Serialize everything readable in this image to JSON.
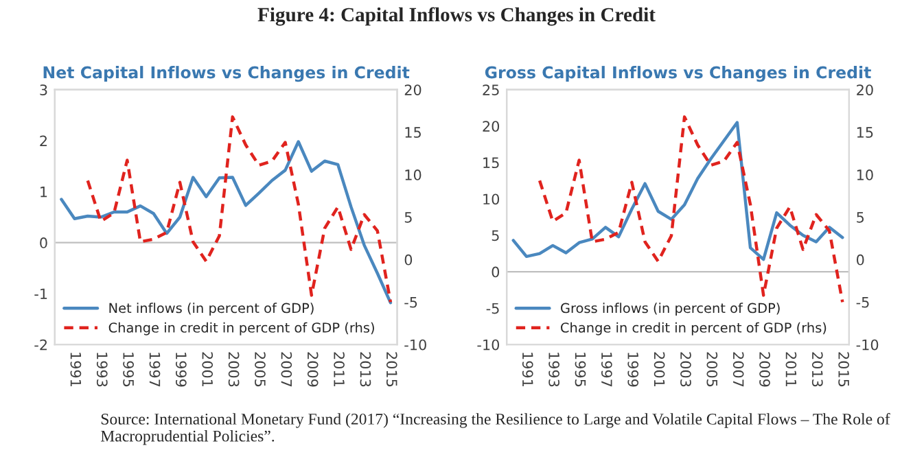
{
  "chart_data": [
    {
      "type": "line",
      "title": "Net Capital Inflows vs Changes in Credit",
      "annotations": [
        "Figure 4: Capital Inflows vs Changes in Credit",
        "Source: International Monetary Fund (2017) “Increasing the Resilience to Large and Volatile Capital Flows – The Role of Macroprudential Policies”."
      ],
      "categories": [
        null,
        "1991",
        null,
        "1993",
        null,
        "1995",
        null,
        "1997",
        null,
        "1999",
        null,
        "2001",
        null,
        "2003",
        null,
        "2005",
        null,
        "2007",
        null,
        "2009",
        null,
        "2011",
        null,
        "2013",
        null,
        "2015"
      ],
      "series": [
        {
          "name": "Net inflows (in percent of GDP)",
          "color": "#4a88bf",
          "line_style": "solid",
          "values": [
            0.85,
            0.47,
            0.52,
            0.5,
            0.6,
            0.6,
            0.72,
            0.57,
            0.18,
            0.5,
            1.28,
            0.9,
            1.27,
            1.28,
            0.73,
            0.97,
            1.22,
            1.42,
            1.98,
            1.4,
            1.6,
            1.53,
            0.7,
            -0.05,
            -0.6,
            -1.18
          ]
        },
        {
          "name": "Change in credit in percent of GDP (rhs)",
          "color": "#e0231e",
          "line_style": "dashed",
          "axis": "y2",
          "values": [
            null,
            null,
            9.3,
            4.5,
            5.5,
            11.7,
            2.1,
            2.4,
            3.2,
            9.1,
            2.1,
            -0.2,
            2.8,
            16.8,
            13.5,
            11.1,
            11.6,
            13.8,
            6.5,
            -4.2,
            3.7,
            6.2,
            1.2,
            5.3,
            3.4,
            -5
          ]
        }
      ],
      "ylim": [
        -2,
        3
      ],
      "yticks": [
        -2,
        -1,
        0,
        1,
        2,
        3
      ],
      "y2lim": [
        -10,
        20
      ],
      "y2ticks": [
        -10,
        -5,
        0,
        5,
        10,
        15,
        20
      ],
      "ref_lines": [
        {
          "axis": "y",
          "value": 0,
          "color": "#bfbfbf"
        }
      ],
      "legend": "bottom left",
      "grid": false
    },
    {
      "type": "line",
      "title": "Gross Capital Inflows vs Changes in Credit",
      "categories": [
        null,
        "1991",
        null,
        "1993",
        null,
        "1995",
        null,
        "1997",
        null,
        "1999",
        null,
        "2001",
        null,
        "2003",
        null,
        "2005",
        null,
        "2007",
        null,
        "2009",
        null,
        "2011",
        null,
        "2013",
        null,
        "2015"
      ],
      "series": [
        {
          "name": "Gross inflows (in percent of GDP)",
          "color": "#4a88bf",
          "line_style": "solid",
          "values": [
            4.3,
            2.1,
            2.5,
            3.6,
            2.6,
            4.0,
            4.5,
            6.1,
            4.8,
            8.6,
            12.1,
            8.3,
            7.2,
            9.2,
            12.8,
            15.5,
            18.0,
            20.5,
            3.3,
            1.7,
            8.1,
            6.4,
            5.0,
            4.1,
            6.1,
            4.7
          ]
        },
        {
          "name": "Change in credit in percent of GDP (rhs)",
          "color": "#e0231e",
          "line_style": "dashed",
          "axis": "y2",
          "values": [
            null,
            null,
            9.3,
            4.5,
            5.5,
            11.7,
            2.1,
            2.4,
            3.2,
            9.1,
            2.1,
            -0.2,
            2.8,
            16.8,
            13.5,
            11.1,
            11.6,
            13.8,
            6.5,
            -4.2,
            3.7,
            6.2,
            1.2,
            5.3,
            3.4,
            -5
          ]
        }
      ],
      "ylim": [
        -10,
        25
      ],
      "yticks": [
        -10,
        -5,
        0,
        5,
        10,
        15,
        20,
        25
      ],
      "y2lim": [
        -10,
        20
      ],
      "y2ticks": [
        -10,
        -5,
        0,
        5,
        10,
        15,
        20
      ],
      "ref_lines": [
        {
          "axis": "y",
          "value": 0,
          "color": "#bfbfbf"
        }
      ],
      "legend": "bottom left",
      "grid": false
    }
  ]
}
